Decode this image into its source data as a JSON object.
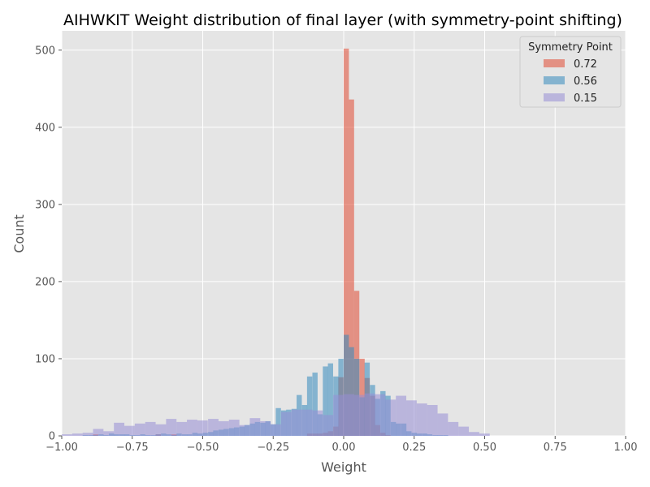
{
  "chart_data": {
    "type": "bar",
    "subtype": "histogram",
    "title": "AIHWKIT Weight distribution of final layer (with symmetry-point shifting)",
    "xlabel": "Weight",
    "ylabel": "Count",
    "xlim": [
      -1.0,
      1.0
    ],
    "ylim": [
      0,
      525
    ],
    "xticks": [
      "−1.00",
      "−0.75",
      "−0.50",
      "−0.25",
      "0.00",
      "0.25",
      "0.50",
      "0.75",
      "1.00"
    ],
    "xtick_values": [
      -1.0,
      -0.75,
      -0.5,
      -0.25,
      0.0,
      0.25,
      0.5,
      0.75,
      1.0
    ],
    "yticks": [
      "0",
      "100",
      "200",
      "300",
      "400",
      "500"
    ],
    "ytick_values": [
      0,
      100,
      200,
      300,
      400,
      500
    ],
    "grid": true,
    "legend": {
      "title": "Symmetry Point",
      "position": "top-right"
    },
    "series": [
      {
        "name": "0.72",
        "color": "#e24a33",
        "opacity": 0.55,
        "bin_width": 0.0185,
        "bin_starts": [
          -0.889,
          -0.667,
          -0.611,
          -0.13,
          -0.111,
          -0.093,
          -0.074,
          -0.056,
          -0.037,
          -0.019,
          0.0,
          0.0185,
          0.037,
          0.056,
          0.074,
          0.093,
          0.111,
          0.13,
          0.148
        ],
        "values": [
          2,
          2,
          2,
          3,
          3,
          3,
          4,
          6,
          12,
          76,
          502,
          436,
          188,
          100,
          75,
          52,
          14,
          4,
          1
        ]
      },
      {
        "name": "0.56",
        "color": "#348abd",
        "opacity": 0.55,
        "bin_width": 0.0185,
        "bin_starts": [
          -0.926,
          -0.907,
          -0.889,
          -0.87,
          -0.852,
          -0.833,
          -0.815,
          -0.796,
          -0.778,
          -0.759,
          -0.741,
          -0.722,
          -0.704,
          -0.685,
          -0.667,
          -0.648,
          -0.63,
          -0.611,
          -0.593,
          -0.574,
          -0.556,
          -0.537,
          -0.519,
          -0.5,
          -0.481,
          -0.463,
          -0.444,
          -0.426,
          -0.407,
          -0.389,
          -0.37,
          -0.352,
          -0.333,
          -0.315,
          -0.296,
          -0.278,
          -0.259,
          -0.241,
          -0.222,
          -0.204,
          -0.185,
          -0.167,
          -0.148,
          -0.13,
          -0.111,
          -0.093,
          -0.074,
          -0.056,
          -0.037,
          -0.019,
          0.0,
          0.0185,
          0.037,
          0.056,
          0.074,
          0.093,
          0.111,
          0.13,
          0.148,
          0.167,
          0.185,
          0.204,
          0.222,
          0.241,
          0.259,
          0.278,
          0.296,
          0.315,
          0.333,
          0.352
        ],
        "values": [
          1,
          1,
          1,
          2,
          1,
          3,
          2,
          2,
          2,
          1,
          1,
          2,
          1,
          1,
          2,
          3,
          2,
          1,
          3,
          2,
          2,
          4,
          3,
          4,
          5,
          7,
          8,
          9,
          10,
          11,
          12,
          14,
          16,
          18,
          17,
          19,
          15,
          36,
          33,
          34,
          35,
          53,
          40,
          77,
          82,
          28,
          90,
          94,
          77,
          100,
          131,
          115,
          100,
          50,
          95,
          66,
          48,
          58,
          52,
          18,
          16,
          16,
          6,
          4,
          3,
          3,
          2,
          1,
          1,
          1
        ]
      },
      {
        "name": "0.15",
        "color": "#988ed5",
        "opacity": 0.55,
        "bin_width": 0.037,
        "bin_starts": [
          -1.0,
          -0.963,
          -0.926,
          -0.889,
          -0.852,
          -0.815,
          -0.778,
          -0.741,
          -0.704,
          -0.667,
          -0.63,
          -0.593,
          -0.556,
          -0.519,
          -0.481,
          -0.444,
          -0.407,
          -0.37,
          -0.333,
          -0.296,
          -0.259,
          -0.222,
          -0.185,
          -0.148,
          -0.111,
          -0.074,
          -0.037,
          0.0,
          0.037,
          0.074,
          0.111,
          0.148,
          0.185,
          0.222,
          0.259,
          0.296,
          0.333,
          0.37,
          0.407,
          0.444,
          0.481
        ],
        "values": [
          2,
          3,
          4,
          9,
          6,
          17,
          13,
          16,
          18,
          15,
          22,
          18,
          21,
          20,
          22,
          19,
          21,
          14,
          23,
          19,
          15,
          31,
          34,
          34,
          33,
          27,
          53,
          54,
          53,
          55,
          54,
          47,
          52,
          46,
          42,
          40,
          29,
          18,
          12,
          5,
          3
        ]
      }
    ]
  }
}
